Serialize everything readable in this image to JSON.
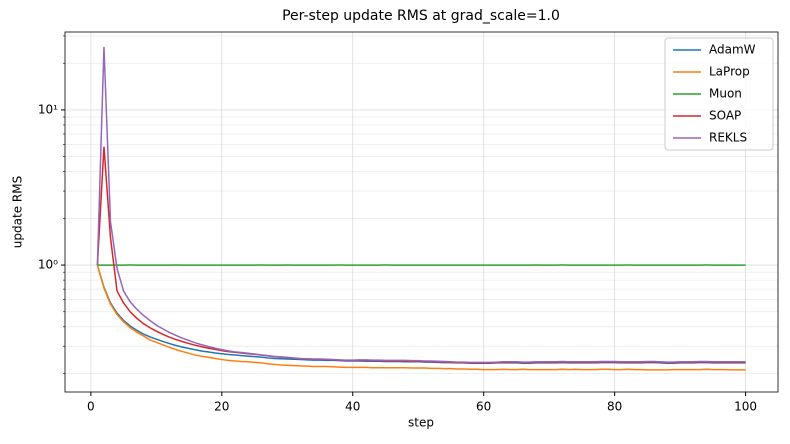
{
  "chart_data": {
    "type": "line",
    "title": "Per-step update RMS at grad_scale=1.0",
    "x_label": "step",
    "y_label": "update RMS",
    "x": [
      1,
      2,
      3,
      4,
      5,
      6,
      7,
      8,
      9,
      10,
      11,
      12,
      13,
      14,
      15,
      16,
      17,
      18,
      19,
      20,
      21,
      22,
      23,
      24,
      25,
      26,
      27,
      28,
      29,
      30,
      31,
      32,
      33,
      34,
      35,
      36,
      37,
      38,
      39,
      40,
      41,
      42,
      43,
      44,
      45,
      46,
      47,
      48,
      49,
      50,
      51,
      52,
      53,
      54,
      55,
      56,
      57,
      58,
      59,
      60,
      61,
      62,
      63,
      64,
      65,
      66,
      67,
      68,
      69,
      70,
      71,
      72,
      73,
      74,
      75,
      76,
      77,
      78,
      79,
      80,
      81,
      82,
      83,
      84,
      85,
      86,
      87,
      88,
      89,
      90,
      91,
      92,
      93,
      94,
      95,
      96,
      97,
      98,
      99,
      100
    ],
    "series": [
      {
        "name": "AdamW",
        "color": "#1f77b4",
        "values": [
          1.0,
          0.72,
          0.57,
          0.49,
          0.44,
          0.405,
          0.38,
          0.36,
          0.345,
          0.333,
          0.322,
          0.312,
          0.303,
          0.296,
          0.29,
          0.284,
          0.279,
          0.275,
          0.271,
          0.268,
          0.265,
          0.263,
          0.261,
          0.259,
          0.257,
          0.255,
          0.252,
          0.25,
          0.249,
          0.248,
          0.247,
          0.246,
          0.245,
          0.244,
          0.244,
          0.243,
          0.243,
          0.242,
          0.241,
          0.241,
          0.241,
          0.24,
          0.24,
          0.24,
          0.239,
          0.239,
          0.239,
          0.238,
          0.238,
          0.238,
          0.237,
          0.237,
          0.236,
          0.235,
          0.235,
          0.234,
          0.234,
          0.233,
          0.233,
          0.233,
          0.233,
          0.234,
          0.234,
          0.234,
          0.234,
          0.233,
          0.233,
          0.234,
          0.234,
          0.234,
          0.234,
          0.235,
          0.234,
          0.234,
          0.234,
          0.234,
          0.234,
          0.235,
          0.235,
          0.235,
          0.234,
          0.234,
          0.234,
          0.234,
          0.235,
          0.235,
          0.234,
          0.233,
          0.233,
          0.234,
          0.234,
          0.234,
          0.235,
          0.235,
          0.234,
          0.234,
          0.234,
          0.234,
          0.234,
          0.234
        ]
      },
      {
        "name": "LaProp",
        "color": "#ff7f0e",
        "values": [
          1.0,
          0.71,
          0.56,
          0.48,
          0.43,
          0.395,
          0.37,
          0.35,
          0.33,
          0.318,
          0.306,
          0.295,
          0.285,
          0.277,
          0.27,
          0.263,
          0.258,
          0.254,
          0.25,
          0.246,
          0.243,
          0.241,
          0.239,
          0.238,
          0.236,
          0.234,
          0.231,
          0.229,
          0.227,
          0.226,
          0.225,
          0.224,
          0.223,
          0.222,
          0.222,
          0.222,
          0.221,
          0.22,
          0.219,
          0.219,
          0.219,
          0.219,
          0.218,
          0.218,
          0.218,
          0.218,
          0.218,
          0.218,
          0.217,
          0.217,
          0.217,
          0.216,
          0.216,
          0.215,
          0.215,
          0.214,
          0.214,
          0.213,
          0.213,
          0.212,
          0.212,
          0.212,
          0.213,
          0.212,
          0.212,
          0.213,
          0.212,
          0.212,
          0.212,
          0.212,
          0.212,
          0.213,
          0.212,
          0.213,
          0.212,
          0.212,
          0.212,
          0.213,
          0.213,
          0.212,
          0.212,
          0.213,
          0.212,
          0.212,
          0.211,
          0.211,
          0.211,
          0.211,
          0.212,
          0.212,
          0.212,
          0.212,
          0.212,
          0.213,
          0.212,
          0.212,
          0.212,
          0.211,
          0.211,
          0.211
        ]
      },
      {
        "name": "Muon",
        "color": "#2ca02c",
        "values": [
          1.0,
          1.0,
          1.0,
          1.0,
          1.0,
          1.001,
          1.0,
          1.0,
          0.999,
          1.0,
          1.0,
          1.0,
          1.001,
          1.0,
          1.0,
          1.0,
          0.999,
          1.0,
          1.0,
          1.0,
          1.0,
          1.0,
          0.999,
          1.0,
          1.0,
          1.001,
          1.0,
          1.0,
          1.0,
          1.001,
          1.0,
          1.0,
          0.999,
          1.0,
          1.0,
          1.0,
          1.0,
          1.001,
          1.0,
          1.0,
          1.0,
          1.0,
          1.0,
          1.0,
          1.001,
          1.0,
          1.0,
          1.0,
          1.0,
          1.0,
          0.999,
          1.0,
          1.0,
          1.0,
          1.0,
          1.0,
          1.0,
          1.0,
          1.0,
          0.999,
          1.0,
          1.0,
          1.0,
          1.0,
          1.0,
          1.0,
          1.0,
          1.001,
          1.0,
          1.0,
          1.0,
          1.001,
          1.0,
          1.0,
          1.0,
          1.0,
          1.0,
          1.0,
          1.0,
          1.0,
          1.0,
          1.001,
          1.0,
          1.0,
          1.0,
          1.0,
          1.0,
          1.0,
          1.0,
          1.0,
          1.0,
          1.0,
          1.0,
          1.001,
          1.0,
          1.0,
          1.0,
          1.0,
          1.0,
          1.0
        ]
      },
      {
        "name": "SOAP",
        "color": "#d62728",
        "values": [
          1.0,
          5.8,
          1.5,
          0.68,
          0.57,
          0.5,
          0.455,
          0.42,
          0.395,
          0.375,
          0.358,
          0.343,
          0.331,
          0.321,
          0.312,
          0.304,
          0.297,
          0.291,
          0.286,
          0.281,
          0.277,
          0.274,
          0.271,
          0.268,
          0.266,
          0.263,
          0.26,
          0.257,
          0.255,
          0.253,
          0.251,
          0.249,
          0.248,
          0.247,
          0.247,
          0.246,
          0.245,
          0.244,
          0.243,
          0.243,
          0.243,
          0.243,
          0.242,
          0.242,
          0.241,
          0.241,
          0.241,
          0.241,
          0.24,
          0.24,
          0.239,
          0.239,
          0.238,
          0.237,
          0.236,
          0.235,
          0.235,
          0.234,
          0.234,
          0.234,
          0.234,
          0.235,
          0.236,
          0.236,
          0.236,
          0.235,
          0.235,
          0.236,
          0.236,
          0.236,
          0.236,
          0.237,
          0.236,
          0.236,
          0.236,
          0.236,
          0.236,
          0.237,
          0.237,
          0.237,
          0.236,
          0.236,
          0.236,
          0.236,
          0.237,
          0.237,
          0.236,
          0.235,
          0.235,
          0.236,
          0.236,
          0.236,
          0.237,
          0.237,
          0.236,
          0.236,
          0.236,
          0.236,
          0.236,
          0.236
        ]
      },
      {
        "name": "REKLS",
        "color": "#9467bd",
        "values": [
          1.0,
          25.5,
          1.9,
          0.95,
          0.68,
          0.58,
          0.52,
          0.475,
          0.44,
          0.41,
          0.388,
          0.368,
          0.352,
          0.338,
          0.326,
          0.315,
          0.306,
          0.298,
          0.291,
          0.285,
          0.28,
          0.276,
          0.273,
          0.27,
          0.267,
          0.264,
          0.261,
          0.258,
          0.256,
          0.254,
          0.252,
          0.25,
          0.249,
          0.248,
          0.248,
          0.247,
          0.246,
          0.245,
          0.244,
          0.244,
          0.245,
          0.245,
          0.244,
          0.244,
          0.243,
          0.243,
          0.243,
          0.243,
          0.242,
          0.242,
          0.241,
          0.241,
          0.24,
          0.239,
          0.238,
          0.237,
          0.237,
          0.236,
          0.236,
          0.236,
          0.236,
          0.237,
          0.238,
          0.238,
          0.238,
          0.237,
          0.237,
          0.238,
          0.238,
          0.238,
          0.238,
          0.239,
          0.238,
          0.238,
          0.238,
          0.238,
          0.238,
          0.239,
          0.239,
          0.239,
          0.238,
          0.238,
          0.238,
          0.238,
          0.239,
          0.239,
          0.238,
          0.237,
          0.237,
          0.238,
          0.238,
          0.238,
          0.239,
          0.239,
          0.238,
          0.238,
          0.238,
          0.238,
          0.238,
          0.238
        ]
      }
    ],
    "xlim": [
      -3.95,
      104.95
    ],
    "xticks": [
      0,
      20,
      40,
      60,
      80,
      100
    ],
    "ylim": [
      0.152,
      31.8
    ],
    "y_scale": "log",
    "yticks": [
      {
        "value": 1,
        "label": "10⁰"
      },
      {
        "value": 10,
        "label": "10¹"
      }
    ],
    "y_minor_ticks": [
      0.2,
      0.3,
      0.4,
      0.5,
      0.6,
      0.7,
      0.8,
      0.9,
      2,
      3,
      4,
      5,
      6,
      7,
      8,
      9,
      20,
      30
    ],
    "grid": true,
    "legend_position": "upper right"
  }
}
